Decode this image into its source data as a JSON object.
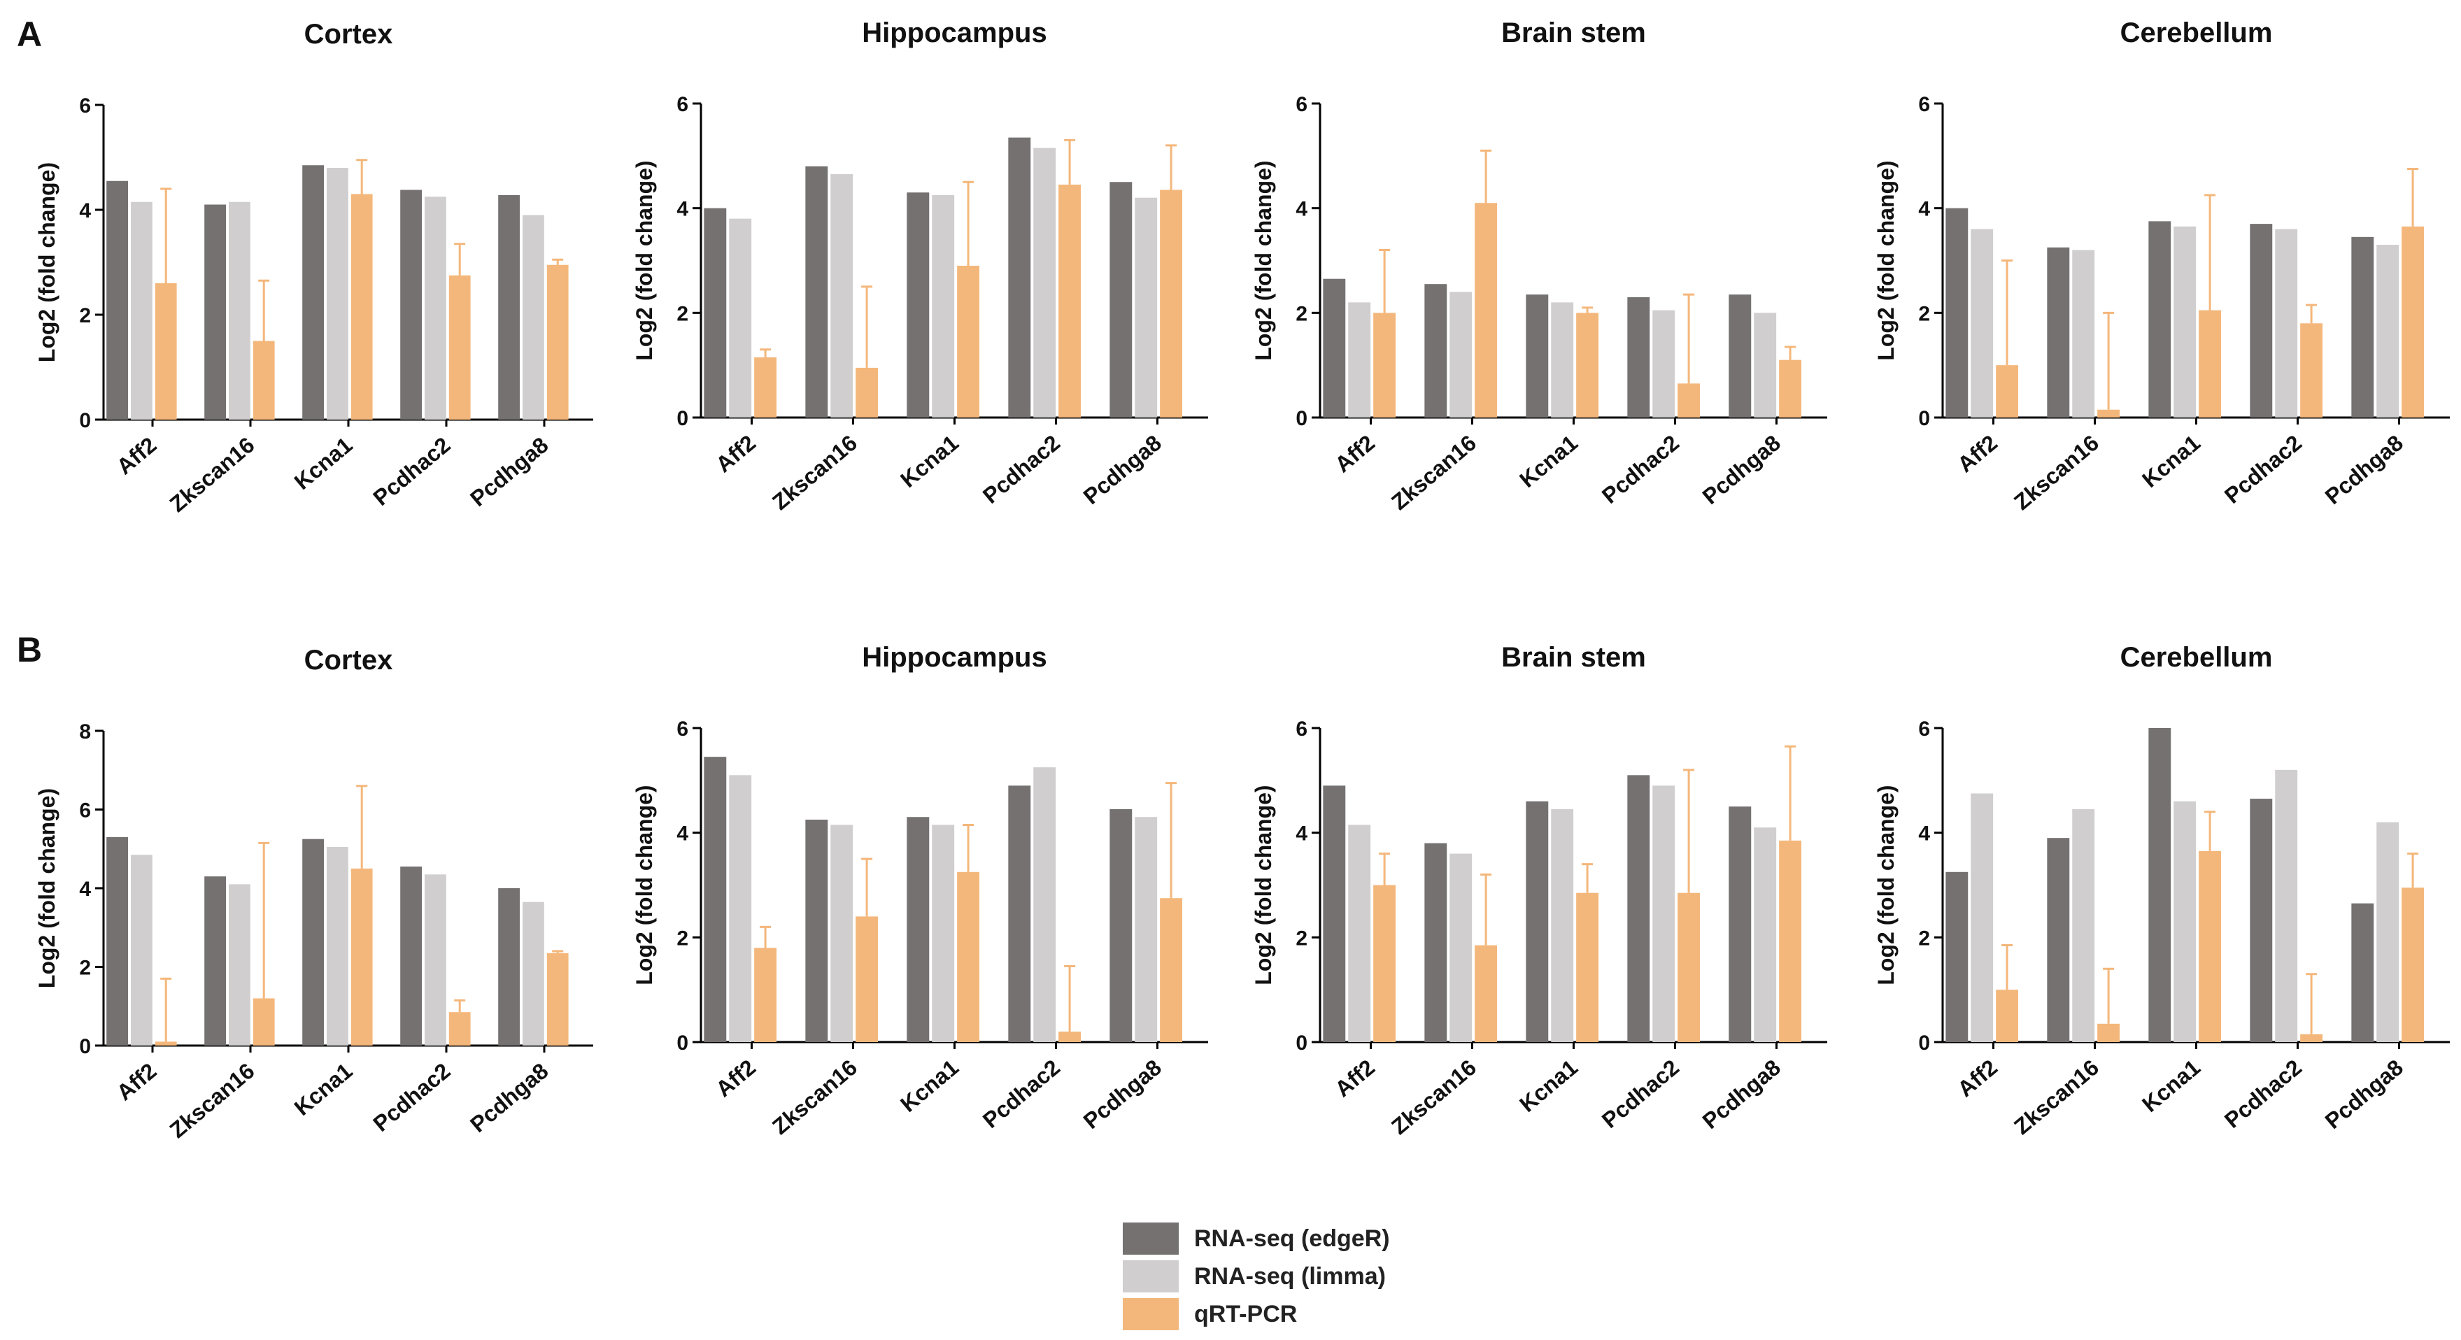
{
  "panel_labels": [
    "A",
    "B"
  ],
  "colors": {
    "edgeR": "#757171",
    "limma": "#d0cece",
    "qpcr": "#f4b77b",
    "axis": "#000000"
  },
  "legend": [
    {
      "key": "edgeR",
      "label": "RNA-seq (edgeR)"
    },
    {
      "key": "limma",
      "label": "RNA-seq (limma)"
    },
    {
      "key": "qpcr",
      "label": "qRT-PCR"
    }
  ],
  "chart_data": [
    {
      "panel": "A",
      "type": "bar",
      "title": "Cortex",
      "xlabel": "",
      "ylabel": "Log2 (fold change)",
      "ylim": [
        0,
        6
      ],
      "yticks": [
        "0",
        "2",
        "4",
        "6"
      ],
      "categories": [
        "Aff2",
        "Zkscan16",
        "Kcna1",
        "Pcdhac2",
        "Pcdhga8"
      ],
      "series": [
        {
          "name": "RNA-seq (edgeR)",
          "values": [
            4.55,
            4.1,
            4.85,
            4.38,
            4.28
          ]
        },
        {
          "name": "RNA-seq (limma)",
          "values": [
            4.15,
            4.15,
            4.8,
            4.25,
            3.9
          ]
        },
        {
          "name": "qRT-PCR",
          "values": [
            2.6,
            1.5,
            4.3,
            2.75,
            2.95
          ],
          "error": [
            1.8,
            1.15,
            0.65,
            0.6,
            0.1
          ]
        }
      ]
    },
    {
      "panel": "A",
      "type": "bar",
      "title": "Hippocampus",
      "xlabel": "",
      "ylabel": "Log2 (fold change)",
      "ylim": [
        0,
        6
      ],
      "yticks": [
        "0",
        "2",
        "4",
        "6"
      ],
      "categories": [
        "Aff2",
        "Zkscan16",
        "Kcna1",
        "Pcdhac2",
        "Pcdhga8"
      ],
      "series": [
        {
          "name": "RNA-seq (edgeR)",
          "values": [
            4.0,
            4.8,
            4.3,
            5.35,
            4.5
          ]
        },
        {
          "name": "RNA-seq (limma)",
          "values": [
            3.8,
            4.65,
            4.25,
            5.15,
            4.2
          ]
        },
        {
          "name": "qRT-PCR",
          "values": [
            1.15,
            0.95,
            2.9,
            4.45,
            4.35
          ],
          "error": [
            0.15,
            1.55,
            1.6,
            0.85,
            0.85
          ]
        }
      ]
    },
    {
      "panel": "A",
      "type": "bar",
      "title": "Brain stem",
      "xlabel": "",
      "ylabel": "Log2 (fold change)",
      "ylim": [
        0,
        6
      ],
      "yticks": [
        "0",
        "2",
        "4",
        "6"
      ],
      "categories": [
        "Aff2",
        "Zkscan16",
        "Kcna1",
        "Pcdhac2",
        "Pcdhga8"
      ],
      "series": [
        {
          "name": "RNA-seq (edgeR)",
          "values": [
            2.65,
            2.55,
            2.35,
            2.3,
            2.35
          ]
        },
        {
          "name": "RNA-seq (limma)",
          "values": [
            2.2,
            2.4,
            2.2,
            2.05,
            2.0
          ]
        },
        {
          "name": "qRT-PCR",
          "values": [
            2.0,
            4.1,
            2.0,
            0.65,
            1.1
          ],
          "error": [
            1.2,
            1.0,
            0.1,
            1.7,
            0.25
          ]
        }
      ]
    },
    {
      "panel": "A",
      "type": "bar",
      "title": "Cerebellum",
      "xlabel": "",
      "ylabel": "Log2 (fold change)",
      "ylim": [
        0,
        6
      ],
      "yticks": [
        "0",
        "2",
        "4",
        "6"
      ],
      "categories": [
        "Aff2",
        "Zkscan16",
        "Kcna1",
        "Pcdhac2",
        "Pcdhga8"
      ],
      "series": [
        {
          "name": "RNA-seq (edgeR)",
          "values": [
            4.0,
            3.25,
            3.75,
            3.7,
            3.45
          ]
        },
        {
          "name": "RNA-seq (limma)",
          "values": [
            3.6,
            3.2,
            3.65,
            3.6,
            3.3
          ]
        },
        {
          "name": "qRT-PCR",
          "values": [
            1.0,
            0.15,
            2.05,
            1.8,
            3.65
          ],
          "error": [
            2.0,
            1.85,
            2.2,
            0.35,
            1.1
          ]
        }
      ]
    },
    {
      "panel": "B",
      "type": "bar",
      "title": "Cortex",
      "xlabel": "",
      "ylabel": "Log2 (fold change)",
      "ylim": [
        0,
        8
      ],
      "yticks": [
        "0",
        "2",
        "4",
        "6",
        "8"
      ],
      "categories": [
        "Aff2",
        "Zkscan16",
        "Kcna1",
        "Pcdhac2",
        "Pcdhga8"
      ],
      "series": [
        {
          "name": "RNA-seq (edgeR)",
          "values": [
            5.3,
            4.3,
            5.25,
            4.55,
            4.0
          ]
        },
        {
          "name": "RNA-seq (limma)",
          "values": [
            4.85,
            4.1,
            5.05,
            4.35,
            3.65
          ]
        },
        {
          "name": "qRT-PCR",
          "values": [
            0.1,
            1.2,
            4.5,
            0.85,
            2.35
          ],
          "error": [
            1.6,
            3.95,
            2.1,
            0.3,
            0.05
          ]
        }
      ]
    },
    {
      "panel": "B",
      "type": "bar",
      "title": "Hippocampus",
      "xlabel": "",
      "ylabel": "Log2 (fold change)",
      "ylim": [
        0,
        6
      ],
      "yticks": [
        "0",
        "2",
        "4",
        "6"
      ],
      "categories": [
        "Aff2",
        "Zkscan16",
        "Kcna1",
        "Pcdhac2",
        "Pcdhga8"
      ],
      "series": [
        {
          "name": "RNA-seq (edgeR)",
          "values": [
            5.45,
            4.25,
            4.3,
            4.9,
            4.45
          ]
        },
        {
          "name": "RNA-seq (limma)",
          "values": [
            5.1,
            4.15,
            4.15,
            5.25,
            4.3
          ]
        },
        {
          "name": "qRT-PCR",
          "values": [
            1.8,
            2.4,
            3.25,
            0.2,
            2.75
          ],
          "error": [
            0.4,
            1.1,
            0.9,
            1.25,
            2.2
          ]
        }
      ]
    },
    {
      "panel": "B",
      "type": "bar",
      "title": "Brain stem",
      "xlabel": "",
      "ylabel": "Log2 (fold change)",
      "ylim": [
        0,
        6
      ],
      "yticks": [
        "0",
        "2",
        "4",
        "6"
      ],
      "categories": [
        "Aff2",
        "Zkscan16",
        "Kcna1",
        "Pcdhac2",
        "Pcdhga8"
      ],
      "series": [
        {
          "name": "RNA-seq (edgeR)",
          "values": [
            4.9,
            3.8,
            4.6,
            5.1,
            4.5
          ]
        },
        {
          "name": "RNA-seq (limma)",
          "values": [
            4.15,
            3.6,
            4.45,
            4.9,
            4.1
          ]
        },
        {
          "name": "qRT-PCR",
          "values": [
            3.0,
            1.85,
            2.85,
            2.85,
            3.85
          ],
          "error": [
            0.6,
            1.35,
            0.55,
            2.35,
            1.8
          ]
        }
      ]
    },
    {
      "panel": "B",
      "type": "bar",
      "title": "Cerebellum",
      "xlabel": "",
      "ylabel": "Log2 (fold change)",
      "ylim": [
        0,
        6
      ],
      "yticks": [
        "0",
        "2",
        "4",
        "6"
      ],
      "categories": [
        "Aff2",
        "Zkscan16",
        "Kcna1",
        "Pcdhac2",
        "Pcdhga8"
      ],
      "series": [
        {
          "name": "RNA-seq (edgeR)",
          "values": [
            3.25,
            3.9,
            6.0,
            4.65,
            2.65
          ]
        },
        {
          "name": "RNA-seq (limma)",
          "values": [
            4.75,
            4.45,
            4.6,
            5.2,
            4.2
          ]
        },
        {
          "name": "qRT-PCR",
          "values": [
            1.0,
            0.35,
            3.65,
            0.15,
            2.95
          ],
          "error": [
            0.85,
            1.05,
            0.75,
            1.15,
            0.65
          ]
        }
      ]
    }
  ]
}
